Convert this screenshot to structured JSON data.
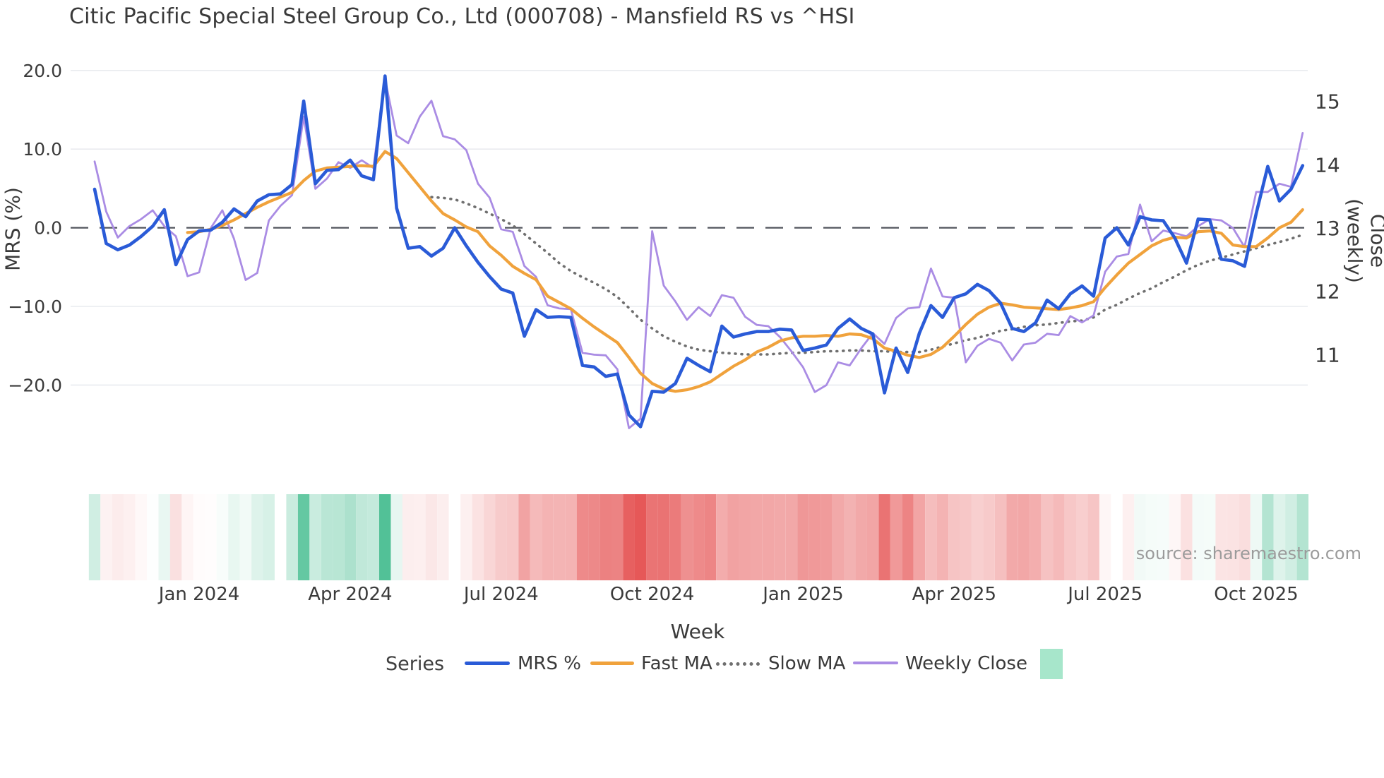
{
  "title": "Citic Pacific Special Steel Group Co., Ltd (000708) - Mansfield RS vs ^HSI",
  "source_credit": "source: sharemaestro.com",
  "axes": {
    "left": {
      "label": "MRS (%)",
      "tick_labels": [
        "20.0",
        "10.0",
        "0.0",
        "−10.0",
        "−20.0"
      ],
      "tick_values": [
        20,
        10,
        0,
        -10,
        -20
      ]
    },
    "right": {
      "label": "Close (weekly)",
      "tick_labels": [
        "15",
        "14",
        "13",
        "12",
        "11"
      ],
      "tick_values": [
        15,
        14,
        13,
        12,
        11
      ]
    },
    "x": {
      "label": "Week",
      "tick_labels": [
        "Jan 2024",
        "Apr 2024",
        "Jul 2024",
        "Oct 2024",
        "Jan 2025",
        "Apr 2025",
        "Jul 2025",
        "Oct 2025"
      ],
      "tick_weeks": [
        9,
        22,
        35,
        48,
        61,
        74,
        87,
        100
      ]
    }
  },
  "legend": {
    "title": "Series",
    "items": [
      {
        "name": "MRS %",
        "style": "solid",
        "color": "#2a5bd7"
      },
      {
        "name": "Fast MA",
        "style": "solid",
        "color": "#f0a23c"
      },
      {
        "name": "Slow MA",
        "style": "dotted",
        "color": "#6f6f6f"
      },
      {
        "name": "Weekly Close",
        "style": "solid",
        "color": "#aa8ce4"
      }
    ],
    "square_color": "#a7e6cb"
  },
  "colors": {
    "mrs": "#2a5bd7",
    "fast_ma": "#f0a23c",
    "slow_ma": "#6f6f6f",
    "weekly_close": "#aa8ce4",
    "zero_line": "#50545c",
    "gridline": "#e9ebef",
    "tick_text": "#3a3a3a",
    "heat_green_max": "#52c197",
    "heat_red_max": "#e65858"
  },
  "chart_data": {
    "type": "line",
    "title": "Citic Pacific Special Steel Group Co., Ltd (000708) - Mansfield RS vs ^HSI",
    "xlabel": "Week",
    "ylabel_left": "MRS (%)",
    "ylabel_right": "Close (weekly)",
    "x_unit": "weekly index, Nov 2023 - Nov 2025",
    "n_weeks": 105,
    "ylim_left": [
      -27,
      20.3
    ],
    "ylim_right": [
      9.6,
      15.5
    ],
    "grid": "horizontal only, zero line dashed",
    "legend_position": "bottom",
    "series": [
      {
        "name": "MRS %",
        "axis": "left",
        "start_week": 0,
        "values": [
          4.9,
          -2.0,
          -2.8,
          -2.2,
          -1.1,
          0.2,
          2.3,
          -4.7,
          -1.5,
          -0.4,
          -0.3,
          0.7,
          2.4,
          1.4,
          3.4,
          4.2,
          4.3,
          5.5,
          16.1,
          5.6,
          7.3,
          7.4,
          8.6,
          6.6,
          6.1,
          19.3,
          2.5,
          -2.6,
          -2.4,
          -3.6,
          -2.6,
          0.0,
          -2.3,
          -4.4,
          -6.2,
          -7.8,
          -8.3,
          -13.8,
          -10.4,
          -11.4,
          -11.3,
          -11.4,
          -17.5,
          -17.7,
          -18.9,
          -18.6,
          -23.8,
          -25.3,
          -20.8,
          -20.9,
          -19.8,
          -16.6,
          -17.5,
          -18.3,
          -12.5,
          -13.9,
          -13.5,
          -13.2,
          -13.2,
          -12.9,
          -13.0,
          -15.6,
          -15.3,
          -14.9,
          -12.8,
          -11.6,
          -12.8,
          -13.5,
          -21.0,
          -15.3,
          -18.4,
          -13.4,
          -9.9,
          -11.4,
          -8.9,
          -8.4,
          -7.2,
          -8.0,
          -9.6,
          -12.8,
          -13.2,
          -12.1,
          -9.2,
          -10.3,
          -8.4,
          -7.4,
          -8.7,
          -1.3,
          0.0,
          -2.2,
          1.4,
          1.0,
          0.9,
          -1.3,
          -4.5,
          1.1,
          1.0,
          -4.0,
          -4.2,
          -4.9,
          1.8,
          7.8,
          3.4,
          4.9,
          7.9
        ]
      },
      {
        "name": "Fast MA",
        "axis": "left",
        "start_week": 8,
        "values": [
          -0.6,
          -0.5,
          -0.2,
          0.3,
          1.0,
          1.8,
          2.6,
          3.3,
          3.9,
          4.5,
          6.0,
          7.2,
          7.6,
          7.7,
          7.8,
          7.9,
          7.8,
          9.7,
          8.8,
          7.0,
          5.2,
          3.4,
          1.8,
          1.0,
          0.1,
          -0.5,
          -2.3,
          -3.5,
          -4.9,
          -5.8,
          -6.6,
          -8.7,
          -9.5,
          -10.3,
          -11.5,
          -12.6,
          -13.6,
          -14.6,
          -16.5,
          -18.5,
          -19.8,
          -20.5,
          -20.8,
          -20.6,
          -20.2,
          -19.6,
          -18.6,
          -17.6,
          -16.8,
          -15.8,
          -15.2,
          -14.4,
          -14.0,
          -13.8,
          -13.8,
          -13.7,
          -13.8,
          -13.5,
          -13.6,
          -14.1,
          -15.3,
          -15.7,
          -16.2,
          -16.5,
          -16.1,
          -15.2,
          -13.8,
          -12.3,
          -11.0,
          -10.1,
          -9.6,
          -9.8,
          -10.1,
          -10.2,
          -10.3,
          -10.4,
          -10.2,
          -9.9,
          -9.4,
          -7.6,
          -6.0,
          -4.5,
          -3.4,
          -2.3,
          -1.6,
          -1.2,
          -1.3,
          -0.5,
          -0.4,
          -0.7,
          -2.2,
          -2.4,
          -2.4,
          -1.3,
          0.0,
          0.7,
          2.3
        ]
      },
      {
        "name": "Slow MA",
        "axis": "left",
        "start_week": 29,
        "values": [
          3.9,
          3.8,
          3.6,
          3.1,
          2.5,
          1.8,
          1.1,
          0.3,
          -0.8,
          -2.0,
          -3.2,
          -4.5,
          -5.5,
          -6.3,
          -7.0,
          -7.8,
          -8.8,
          -10.2,
          -11.7,
          -12.8,
          -13.8,
          -14.5,
          -15.1,
          -15.5,
          -15.7,
          -15.9,
          -16.0,
          -16.1,
          -16.1,
          -16.1,
          -16.0,
          -15.9,
          -15.9,
          -15.8,
          -15.7,
          -15.7,
          -15.6,
          -15.6,
          -15.7,
          -15.7,
          -15.8,
          -15.8,
          -15.8,
          -15.5,
          -15.1,
          -14.7,
          -14.3,
          -14.0,
          -13.6,
          -13.1,
          -12.9,
          -12.6,
          -12.4,
          -12.3,
          -12.1,
          -11.9,
          -11.8,
          -11.4,
          -10.4,
          -9.8,
          -9.0,
          -8.3,
          -7.7,
          -6.9,
          -6.2,
          -5.4,
          -4.7,
          -4.2,
          -3.8,
          -3.4,
          -3.0,
          -2.6,
          -2.2,
          -1.8,
          -1.4,
          -0.9
        ]
      },
      {
        "name": "Weekly Close",
        "axis": "right",
        "start_week": 0,
        "values": [
          14.05,
          13.26,
          12.85,
          13.03,
          13.14,
          13.28,
          13.03,
          12.87,
          12.24,
          12.3,
          13.0,
          13.28,
          12.83,
          12.18,
          12.29,
          13.12,
          13.35,
          13.52,
          14.76,
          13.62,
          13.78,
          14.04,
          13.95,
          14.07,
          13.95,
          15.35,
          14.46,
          14.34,
          14.76,
          15.01,
          14.45,
          14.4,
          14.23,
          13.7,
          13.48,
          12.98,
          12.94,
          12.4,
          12.23,
          11.78,
          11.73,
          11.72,
          11.03,
          11.0,
          10.99,
          10.77,
          9.84,
          9.99,
          12.95,
          12.09,
          11.84,
          11.55,
          11.75,
          11.61,
          11.94,
          11.9,
          11.6,
          11.47,
          11.45,
          11.28,
          11.05,
          10.8,
          10.41,
          10.52,
          10.88,
          10.83,
          11.1,
          11.34,
          11.17,
          11.58,
          11.73,
          11.75,
          12.36,
          11.92,
          11.9,
          10.88,
          11.14,
          11.25,
          11.19,
          10.91,
          11.16,
          11.19,
          11.33,
          11.31,
          11.61,
          11.51,
          11.62,
          12.31,
          12.55,
          12.59,
          13.37,
          12.79,
          12.96,
          12.92,
          12.87,
          13.03,
          13.14,
          13.12,
          13.0,
          12.7,
          13.57,
          13.57,
          13.7,
          13.65,
          14.5
        ]
      }
    ],
    "heatmap": {
      "description": "weekly strip below chart, color from MRS % sign/magnitude: green positive, red negative, white = missing week",
      "basis_series": "MRS %",
      "gap_weeks": [
        16
      ],
      "green_full_scale": 18,
      "red_full_scale": 25
    }
  }
}
